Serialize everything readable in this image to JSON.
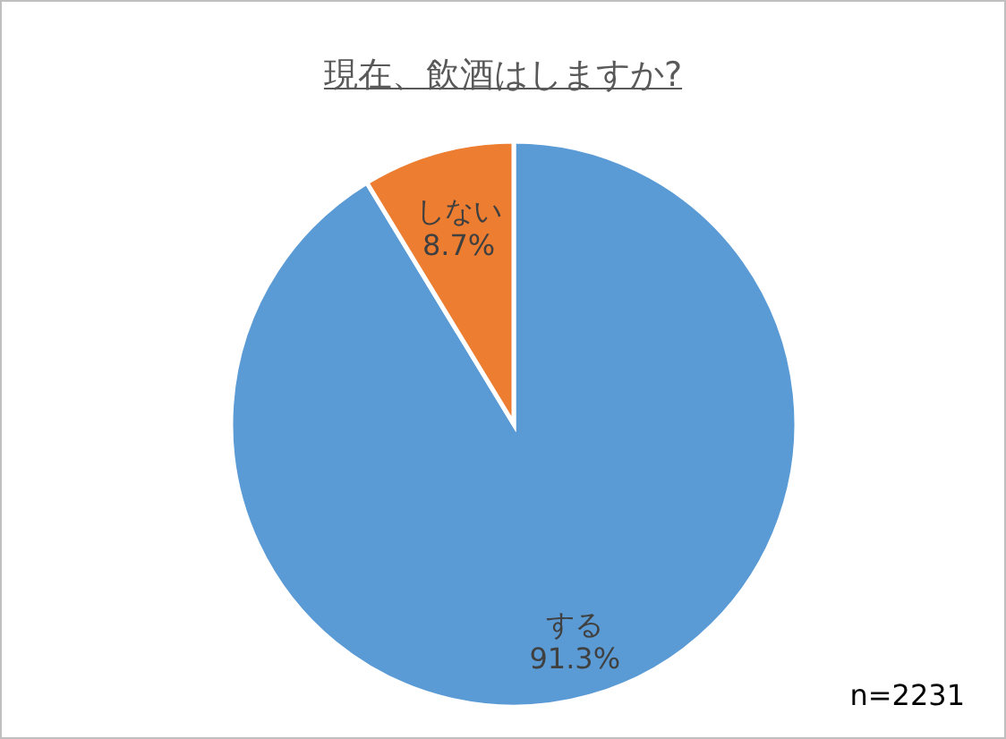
{
  "chart_data": {
    "type": "pie",
    "title": "現在、飲酒はしますか?",
    "categories": [
      "する",
      "しない"
    ],
    "values": [
      91.3,
      8.7
    ],
    "colors": [
      "#5b9bd5",
      "#ed7d31"
    ],
    "value_labels": [
      "91.3%",
      "8.7%"
    ],
    "annotations": [
      "n=2231"
    ],
    "legend": false
  }
}
